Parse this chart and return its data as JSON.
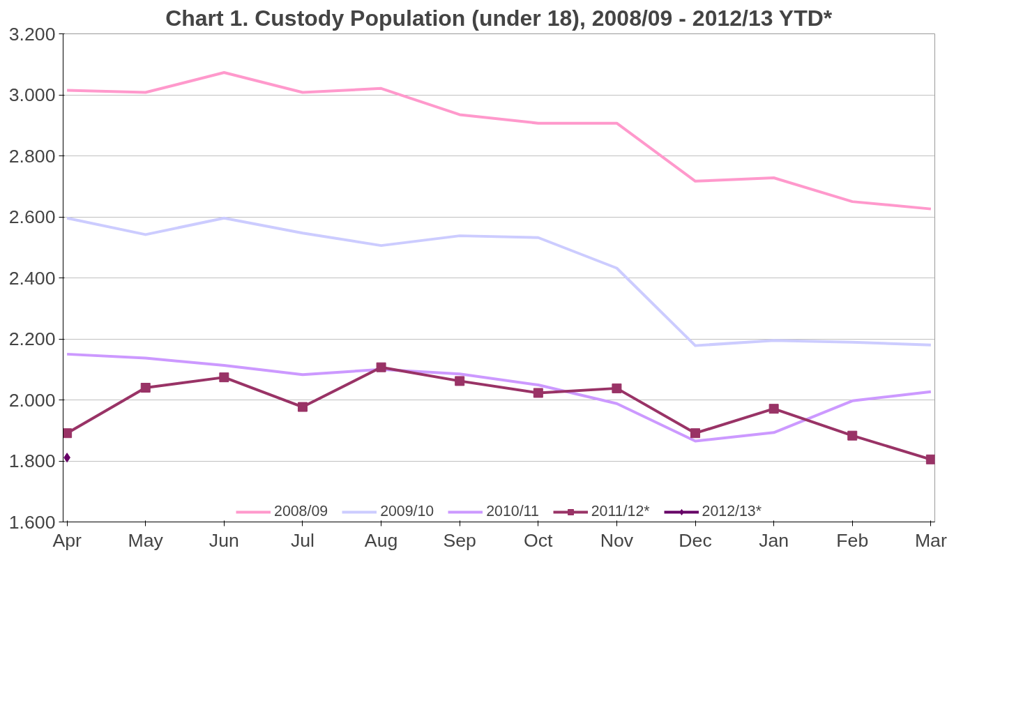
{
  "chart_data": {
    "type": "line",
    "title": "Chart 1. Custody Population (under 18), 2008/09 - 2012/13 YTD*",
    "categories": [
      "Apr",
      "May",
      "Jun",
      "Jul",
      "Aug",
      "Sep",
      "Oct",
      "Nov",
      "Dec",
      "Jan",
      "Feb",
      "Mar"
    ],
    "series": [
      {
        "name": "2008/09",
        "color": "#ff99cc",
        "marker": "none",
        "values": [
          3015,
          3008,
          3073,
          3008,
          3021,
          2935,
          2907,
          2907,
          2717,
          2728,
          2650,
          2626
        ]
      },
      {
        "name": "2009/10",
        "color": "#ccccff",
        "marker": "none",
        "values": [
          2596,
          2542,
          2596,
          2547,
          2506,
          2538,
          2532,
          2432,
          2178,
          2195,
          2189,
          2180
        ]
      },
      {
        "name": "2010/11",
        "color": "#cc99ff",
        "marker": "none",
        "values": [
          2150,
          2137,
          2113,
          2083,
          2100,
          2085,
          2049,
          1988,
          1865,
          1893,
          1997,
          2027
        ]
      },
      {
        "name": "2011/12*",
        "color": "#993366",
        "marker": "square",
        "values": [
          1891,
          2040,
          2074,
          1977,
          2107,
          2062,
          2023,
          2038,
          1891,
          1971,
          1883,
          1805
        ]
      },
      {
        "name": "2012/13*",
        "color": "#660066",
        "marker": "diamond",
        "values": [
          1811,
          null,
          null,
          null,
          null,
          null,
          null,
          null,
          null,
          null,
          null,
          null
        ]
      }
    ],
    "ylim": [
      1600,
      3200
    ],
    "yticks": [
      {
        "value": 1600,
        "label": "1.600"
      },
      {
        "value": 1800,
        "label": "1.800"
      },
      {
        "value": 2000,
        "label": "2.000"
      },
      {
        "value": 2200,
        "label": "2.200"
      },
      {
        "value": 2400,
        "label": "2.400"
      },
      {
        "value": 2600,
        "label": "2.600"
      },
      {
        "value": 2800,
        "label": "2.800"
      },
      {
        "value": 3000,
        "label": "3.000"
      },
      {
        "value": 3200,
        "label": "3.200"
      }
    ],
    "grid": "y",
    "legend": "bottom",
    "line_style": "solid"
  }
}
